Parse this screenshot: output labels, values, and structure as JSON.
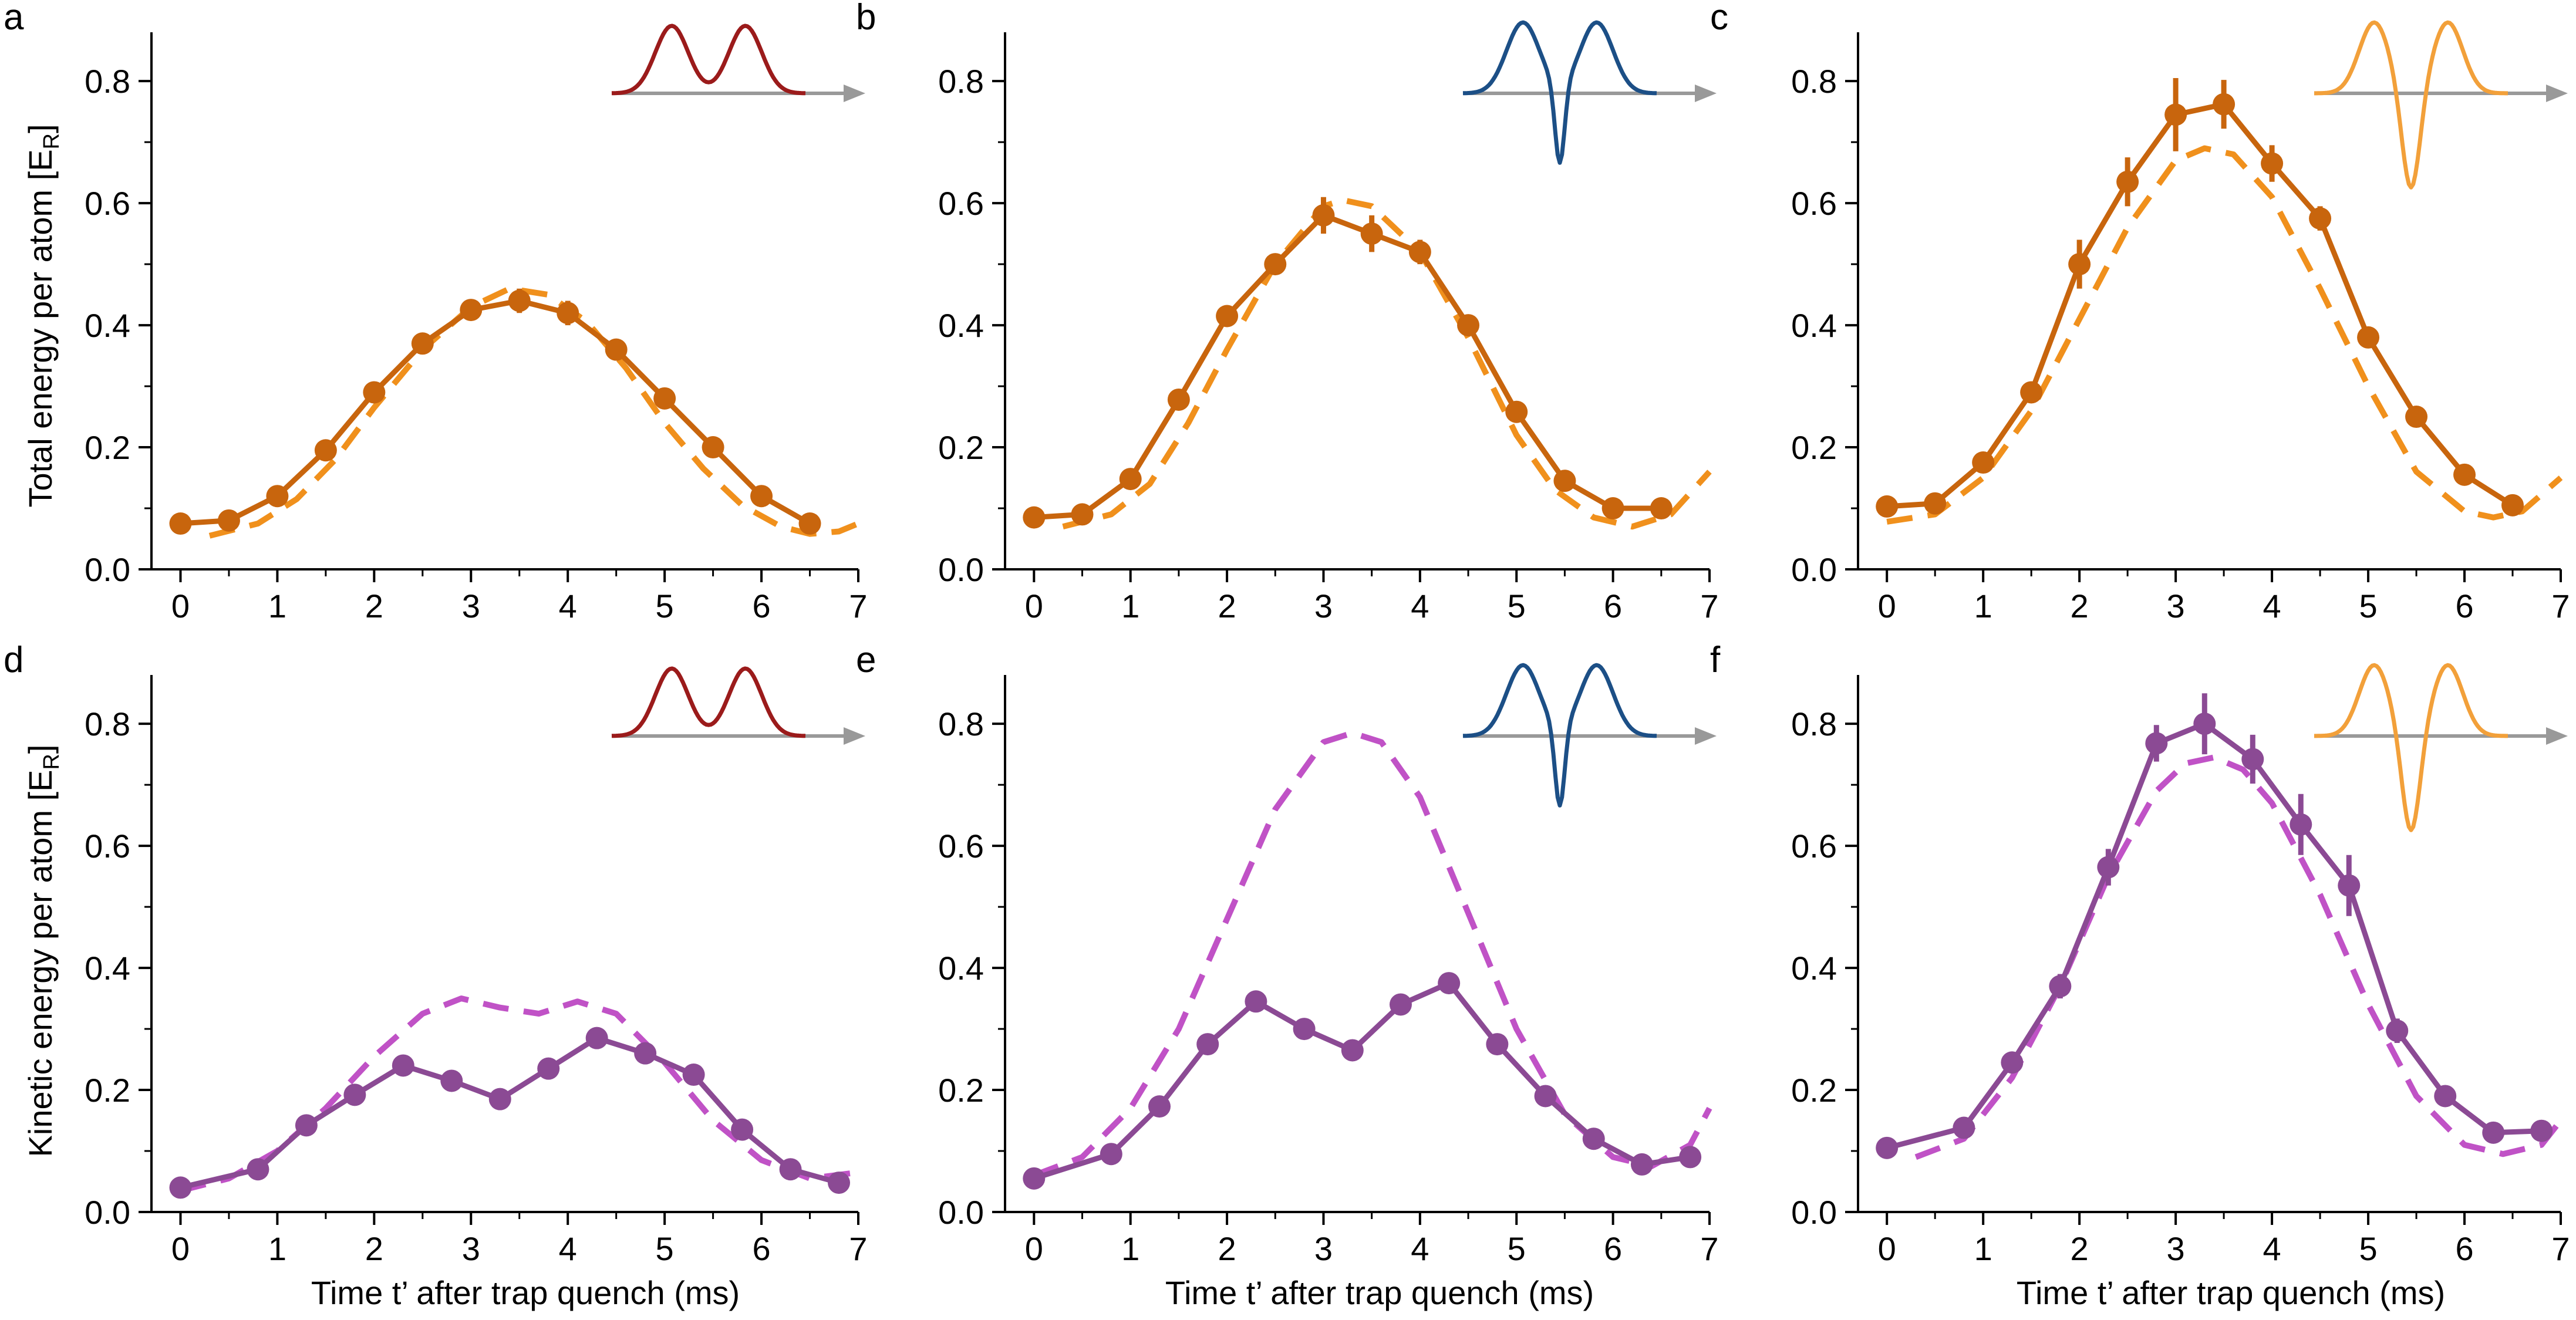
{
  "figure": {
    "ylabel_top": "Total energy per atom [E",
    "ylabel_bottom": "Kinetic energy per atom [E",
    "ylabel_sub": "R",
    "ylabel_close": "]",
    "xlabel": "Time t’ after trap quench (ms)"
  },
  "colors": {
    "orange_data": "#C8650D",
    "orange_fit": "#F0901C",
    "purple_data": "#8B4A94",
    "purple_fit": "#C052C6",
    "inset_red": "#9B1B1B",
    "inset_blue": "#1C4F86",
    "inset_orange": "#F2A03A",
    "inset_axis": "#999999"
  },
  "chart_data": [
    {
      "panel": "a",
      "type": "line",
      "ylabel": "Total energy per atom [E_R]",
      "xlabel": "",
      "xlim": [
        -0.3,
        7
      ],
      "ylim": [
        0,
        0.88
      ],
      "xticks": [
        0,
        1,
        2,
        3,
        4,
        5,
        6,
        7
      ],
      "yticks": [
        0.0,
        0.2,
        0.4,
        0.6,
        0.8
      ],
      "inset": "double-hump",
      "series": [
        {
          "name": "data",
          "style": "markers+line",
          "color": "#C8650D",
          "x": [
            0,
            0.5,
            1,
            1.5,
            2,
            2.5,
            3,
            3.5,
            4,
            4.5,
            5,
            5.5,
            6,
            6.5
          ],
          "y": [
            0.075,
            0.08,
            0.12,
            0.195,
            0.29,
            0.37,
            0.425,
            0.44,
            0.42,
            0.36,
            0.28,
            0.2,
            0.12,
            0.075
          ],
          "err": [
            0,
            0,
            0,
            0,
            0,
            0,
            0,
            0.02,
            0.02,
            0,
            0,
            0,
            0,
            0
          ]
        },
        {
          "name": "fit",
          "style": "dashed",
          "color": "#F0901C",
          "x": [
            0.3,
            0.8,
            1.2,
            1.6,
            2,
            2.5,
            3,
            3.4,
            3.8,
            4.2,
            4.6,
            5,
            5.4,
            5.8,
            6.2,
            6.5,
            6.8,
            7
          ],
          "y": [
            0.055,
            0.075,
            0.115,
            0.18,
            0.265,
            0.36,
            0.43,
            0.46,
            0.45,
            0.405,
            0.33,
            0.24,
            0.165,
            0.105,
            0.07,
            0.058,
            0.062,
            0.075
          ]
        }
      ]
    },
    {
      "panel": "b",
      "type": "line",
      "xlim": [
        -0.3,
        7
      ],
      "ylim": [
        0,
        0.88
      ],
      "xticks": [
        0,
        1,
        2,
        3,
        4,
        5,
        6,
        7
      ],
      "yticks": [
        0.0,
        0.2,
        0.4,
        0.6,
        0.8
      ],
      "inset": "dip-hump",
      "series": [
        {
          "name": "data",
          "style": "markers+line",
          "color": "#C8650D",
          "x": [
            0,
            0.5,
            1,
            1.5,
            2,
            2.5,
            3,
            3.5,
            4,
            4.5,
            5,
            5.5,
            6,
            6.5
          ],
          "y": [
            0.085,
            0.09,
            0.148,
            0.278,
            0.415,
            0.5,
            0.58,
            0.55,
            0.52,
            0.4,
            0.258,
            0.145,
            0.1,
            0.1
          ],
          "err": [
            0,
            0,
            0,
            0,
            0,
            0,
            0.03,
            0.03,
            0.02,
            0,
            0,
            0,
            0,
            0
          ]
        },
        {
          "name": "fit",
          "style": "dashed",
          "color": "#F0901C",
          "x": [
            0.3,
            0.8,
            1.2,
            1.6,
            2,
            2.5,
            3,
            3.2,
            3.5,
            4,
            4.5,
            5,
            5.4,
            5.8,
            6.2,
            6.6,
            7
          ],
          "y": [
            0.07,
            0.09,
            0.14,
            0.24,
            0.36,
            0.5,
            0.595,
            0.605,
            0.595,
            0.52,
            0.38,
            0.22,
            0.13,
            0.085,
            0.07,
            0.09,
            0.16
          ]
        }
      ]
    },
    {
      "panel": "c",
      "type": "line",
      "xlim": [
        -0.3,
        7
      ],
      "ylim": [
        0,
        0.88
      ],
      "xticks": [
        0,
        1,
        2,
        3,
        4,
        5,
        6,
        7
      ],
      "yticks": [
        0.0,
        0.2,
        0.4,
        0.6,
        0.8
      ],
      "inset": "deep-dip-hump",
      "series": [
        {
          "name": "data",
          "style": "markers+line",
          "color": "#C8650D",
          "x": [
            0,
            0.5,
            1,
            1.5,
            2,
            2.5,
            3,
            3.5,
            4,
            4.5,
            5,
            5.5,
            6,
            6.5
          ],
          "y": [
            0.103,
            0.108,
            0.175,
            0.29,
            0.5,
            0.635,
            0.745,
            0.762,
            0.665,
            0.575,
            0.38,
            0.25,
            0.155,
            0.105
          ],
          "err": [
            0,
            0,
            0,
            0,
            0.04,
            0.04,
            0.06,
            0.04,
            0.03,
            0.02,
            0,
            0,
            0,
            0
          ]
        },
        {
          "name": "fit",
          "style": "dashed",
          "color": "#F0901C",
          "x": [
            0,
            0.5,
            1,
            1.5,
            2,
            2.5,
            3,
            3.3,
            3.6,
            4,
            4.5,
            5,
            5.5,
            6,
            6.3,
            6.6,
            7
          ],
          "y": [
            0.078,
            0.09,
            0.15,
            0.26,
            0.41,
            0.56,
            0.67,
            0.69,
            0.68,
            0.61,
            0.46,
            0.3,
            0.16,
            0.095,
            0.085,
            0.095,
            0.15
          ]
        }
      ]
    },
    {
      "panel": "d",
      "type": "line",
      "ylabel": "Kinetic energy per atom [E_R]",
      "xlabel": "Time t’ after trap quench (ms)",
      "xlim": [
        -0.3,
        7
      ],
      "ylim": [
        0,
        0.88
      ],
      "xticks": [
        0,
        1,
        2,
        3,
        4,
        5,
        6,
        7
      ],
      "yticks": [
        0.0,
        0.2,
        0.4,
        0.6,
        0.8
      ],
      "inset": "double-hump",
      "series": [
        {
          "name": "data",
          "style": "markers+line",
          "color": "#8B4A94",
          "x": [
            0,
            0.8,
            1.3,
            1.8,
            2.3,
            2.8,
            3.3,
            3.8,
            4.3,
            4.8,
            5.3,
            5.8,
            6.3,
            6.8
          ],
          "y": [
            0.04,
            0.07,
            0.142,
            0.192,
            0.24,
            0.215,
            0.185,
            0.235,
            0.285,
            0.26,
            0.225,
            0.135,
            0.07,
            0.048
          ],
          "err": [
            0,
            0,
            0,
            0,
            0,
            0,
            0,
            0,
            0,
            0,
            0,
            0,
            0,
            0
          ]
        },
        {
          "name": "fit",
          "style": "dashed",
          "color": "#C052C6",
          "x": [
            0,
            0.5,
            1,
            1.5,
            2,
            2.5,
            2.9,
            3.3,
            3.7,
            4.1,
            4.5,
            5,
            5.5,
            6,
            6.5,
            7
          ],
          "y": [
            0.035,
            0.055,
            0.1,
            0.17,
            0.255,
            0.325,
            0.35,
            0.335,
            0.325,
            0.345,
            0.325,
            0.245,
            0.15,
            0.085,
            0.055,
            0.065
          ]
        }
      ]
    },
    {
      "panel": "e",
      "type": "line",
      "xlabel": "Time t’ after trap quench (ms)",
      "xlim": [
        -0.3,
        7
      ],
      "ylim": [
        0,
        0.88
      ],
      "xticks": [
        0,
        1,
        2,
        3,
        4,
        5,
        6,
        7
      ],
      "yticks": [
        0.0,
        0.2,
        0.4,
        0.6,
        0.8
      ],
      "inset": "dip-hump",
      "series": [
        {
          "name": "data",
          "style": "markers+line",
          "color": "#8B4A94",
          "x": [
            0,
            0.8,
            1.3,
            1.8,
            2.3,
            2.8,
            3.3,
            3.8,
            4.3,
            4.8,
            5.3,
            5.8,
            6.3,
            6.8
          ],
          "y": [
            0.055,
            0.095,
            0.173,
            0.275,
            0.345,
            0.3,
            0.265,
            0.34,
            0.375,
            0.275,
            0.19,
            0.12,
            0.078,
            0.09
          ],
          "err": [
            0,
            0,
            0,
            0,
            0,
            0,
            0,
            0,
            0,
            0,
            0,
            0,
            0,
            0
          ]
        },
        {
          "name": "fit",
          "style": "dashed",
          "color": "#C052C6",
          "x": [
            0,
            0.5,
            1,
            1.5,
            2,
            2.5,
            3,
            3.3,
            3.6,
            4,
            4.5,
            5,
            5.5,
            6,
            6.4,
            6.8,
            7
          ],
          "y": [
            0.06,
            0.09,
            0.17,
            0.3,
            0.48,
            0.66,
            0.77,
            0.785,
            0.77,
            0.68,
            0.49,
            0.3,
            0.16,
            0.09,
            0.075,
            0.11,
            0.17
          ]
        }
      ]
    },
    {
      "panel": "f",
      "type": "line",
      "xlabel": "Time t’ after trap quench (ms)",
      "xlim": [
        -0.3,
        7
      ],
      "ylim": [
        0,
        0.88
      ],
      "xticks": [
        0,
        1,
        2,
        3,
        4,
        5,
        6,
        7
      ],
      "yticks": [
        0.0,
        0.2,
        0.4,
        0.6,
        0.8
      ],
      "inset": "deep-dip-hump",
      "series": [
        {
          "name": "data",
          "style": "markers+line",
          "color": "#8B4A94",
          "x": [
            0,
            0.8,
            1.3,
            1.8,
            2.3,
            2.8,
            3.3,
            3.8,
            4.3,
            4.8,
            5.3,
            5.8,
            6.3,
            6.8
          ],
          "y": [
            0.105,
            0.138,
            0.245,
            0.37,
            0.565,
            0.768,
            0.8,
            0.742,
            0.635,
            0.535,
            0.297,
            0.19,
            0.13,
            0.133
          ],
          "err": [
            0,
            0,
            0,
            0.02,
            0.03,
            0.03,
            0.05,
            0.04,
            0.05,
            0.05,
            0.02,
            0,
            0,
            0
          ]
        },
        {
          "name": "fit",
          "style": "dashed",
          "color": "#C052C6",
          "x": [
            0.3,
            0.8,
            1.3,
            1.8,
            2.3,
            2.8,
            3.1,
            3.4,
            3.7,
            4,
            4.5,
            5,
            5.5,
            6,
            6.4,
            6.8,
            7
          ],
          "y": [
            0.09,
            0.12,
            0.22,
            0.37,
            0.55,
            0.69,
            0.735,
            0.745,
            0.725,
            0.67,
            0.52,
            0.34,
            0.19,
            0.11,
            0.095,
            0.11,
            0.15
          ]
        }
      ]
    }
  ]
}
